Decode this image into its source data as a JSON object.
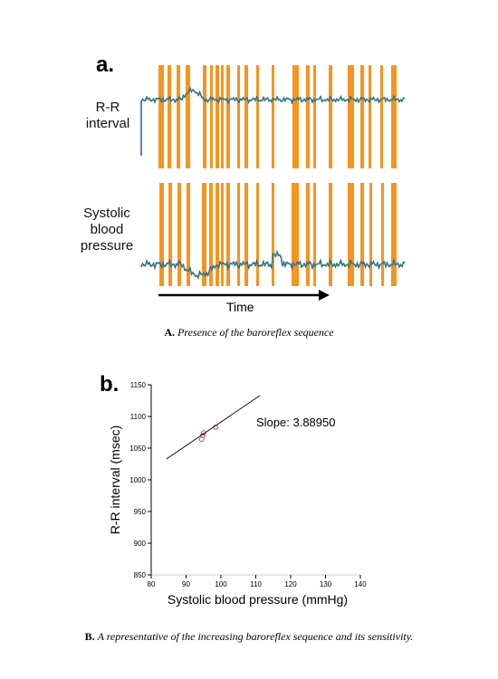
{
  "panel_a": {
    "label": "a.",
    "trace_labels": [
      "R-R interval",
      "Systolic blood pressure"
    ],
    "arrow_label": "Time"
  },
  "caption_a": {
    "label": "A.",
    "text": "Presence of the baroreflex sequence"
  },
  "chart_data": {
    "type": "scatter",
    "panel_label": "b.",
    "xlabel": "Systolic blood pressure (mmHg)",
    "ylabel": "R-R interval (msec)",
    "annotation": "Slope: 3.88950",
    "series": [
      {
        "color": "#c0504d",
        "x": [
          94.5,
          94.8,
          95,
          98.5
        ],
        "values": [
          1064,
          1070,
          1074,
          1083
        ]
      },
      {
        "type": "line",
        "color": "#000000",
        "x": [
          84.4,
          111.2
        ],
        "values": [
          1033,
          1133
        ]
      }
    ],
    "xlim": [
      80,
      140
    ],
    "ylim": [
      850,
      1150
    ],
    "xticks": [
      80,
      90,
      100,
      110,
      120,
      130,
      140
    ],
    "yticks": [
      850,
      900,
      950,
      1000,
      1050,
      1100,
      1150
    ]
  },
  "caption_b": {
    "label": "B.",
    "text": "A representative of the increasing baroreflex sequence and its sensitivity."
  }
}
